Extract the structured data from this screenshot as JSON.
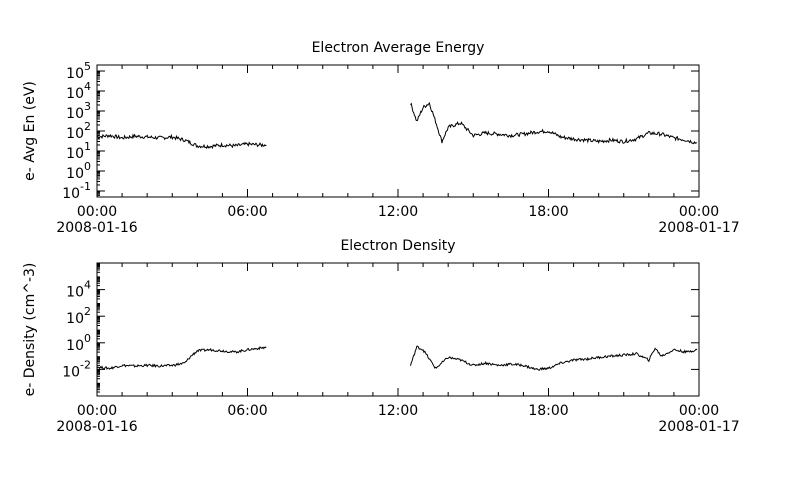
{
  "chart_data": [
    {
      "type": "line",
      "title": "Electron Average Energy",
      "ylabel": "e- Avg En (eV)",
      "y_scale": "log",
      "ylim": [
        0.05,
        200000
      ],
      "y_tick_values": [
        0.1,
        1,
        10,
        100,
        1000,
        10000,
        100000
      ],
      "y_ticks": [
        {
          "base": "10",
          "exp": "-1"
        },
        {
          "base": "10",
          "exp": "0"
        },
        {
          "base": "10",
          "exp": "1"
        },
        {
          "base": "10",
          "exp": "2"
        },
        {
          "base": "10",
          "exp": "3"
        },
        {
          "base": "10",
          "exp": "4"
        },
        {
          "base": "10",
          "exp": "5"
        }
      ],
      "x_ticks": [
        {
          "time": "00:00",
          "date": "2008-01-16"
        },
        {
          "time": "06:00",
          "date": ""
        },
        {
          "time": "12:00",
          "date": ""
        },
        {
          "time": "18:00",
          "date": ""
        },
        {
          "time": "00:00",
          "date": "2008-01-17"
        }
      ],
      "xlim": [
        "2008-01-16 00:00",
        "2008-01-17 00:00"
      ],
      "grid": false,
      "color": "#000000",
      "series": [
        {
          "x": [
            "00:00",
            "00:30",
            "01:00",
            "01:30",
            "02:00",
            "02:30",
            "03:00",
            "03:30",
            "04:00",
            "04:30",
            "05:00",
            "05:30",
            "06:00",
            "06:30",
            "06:45"
          ],
          "values": [
            50,
            60,
            45,
            55,
            50,
            45,
            50,
            35,
            18,
            17,
            20,
            18,
            22,
            20,
            20
          ]
        },
        {
          "x": [
            "12:30",
            "12:45",
            "13:00",
            "13:15",
            "13:30",
            "13:45",
            "14:00",
            "14:15",
            "14:30",
            "15:00",
            "15:30",
            "16:00",
            "16:30",
            "17:00",
            "17:30",
            "18:00",
            "18:30",
            "19:00",
            "19:30",
            "20:00",
            "20:30",
            "21:00",
            "21:30",
            "22:00",
            "22:30",
            "23:00",
            "23:30",
            "23:55"
          ],
          "values": [
            2500,
            300,
            1500,
            2500,
            300,
            30,
            150,
            200,
            250,
            60,
            80,
            70,
            60,
            70,
            90,
            100,
            50,
            40,
            35,
            30,
            35,
            30,
            40,
            80,
            70,
            45,
            35,
            25
          ]
        }
      ]
    },
    {
      "type": "line",
      "title": "Electron Density",
      "ylabel": "e- Density (cm^-3)",
      "y_scale": "log",
      "ylim": [
        0.0001,
        1000000
      ],
      "y_tick_values": [
        0.01,
        1,
        100,
        10000
      ],
      "y_ticks": [
        {
          "base": "10",
          "exp": "-2"
        },
        {
          "base": "10",
          "exp": "0"
        },
        {
          "base": "10",
          "exp": "2"
        },
        {
          "base": "10",
          "exp": "4"
        }
      ],
      "x_ticks": [
        {
          "time": "00:00",
          "date": "2008-01-16"
        },
        {
          "time": "06:00",
          "date": ""
        },
        {
          "time": "12:00",
          "date": ""
        },
        {
          "time": "18:00",
          "date": ""
        },
        {
          "time": "00:00",
          "date": "2008-01-17"
        }
      ],
      "xlim": [
        "2008-01-16 00:00",
        "2008-01-17 00:00"
      ],
      "grid": false,
      "color": "#000000",
      "series": [
        {
          "x": [
            "00:00",
            "00:30",
            "01:00",
            "01:30",
            "02:00",
            "02:30",
            "03:00",
            "03:30",
            "03:45",
            "04:00",
            "04:30",
            "05:00",
            "05:30",
            "06:00",
            "06:30",
            "06:45"
          ],
          "values": [
            0.015,
            0.012,
            0.02,
            0.018,
            0.02,
            0.018,
            0.02,
            0.03,
            0.1,
            0.25,
            0.3,
            0.25,
            0.2,
            0.3,
            0.4,
            0.45
          ]
        },
        {
          "x": [
            "12:30",
            "12:45",
            "13:00",
            "13:30",
            "14:00",
            "14:30",
            "15:00",
            "15:30",
            "16:00",
            "16:30",
            "17:00",
            "17:30",
            "18:00",
            "18:30",
            "19:00",
            "19:30",
            "20:00",
            "20:30",
            "21:00",
            "21:30",
            "22:00",
            "22:15",
            "22:30",
            "23:00",
            "23:30",
            "23:55"
          ],
          "values": [
            0.02,
            0.5,
            0.3,
            0.012,
            0.08,
            0.05,
            0.02,
            0.03,
            0.02,
            0.025,
            0.02,
            0.01,
            0.012,
            0.03,
            0.05,
            0.06,
            0.08,
            0.1,
            0.12,
            0.15,
            0.05,
            0.4,
            0.1,
            0.3,
            0.2,
            0.3
          ]
        }
      ]
    }
  ]
}
